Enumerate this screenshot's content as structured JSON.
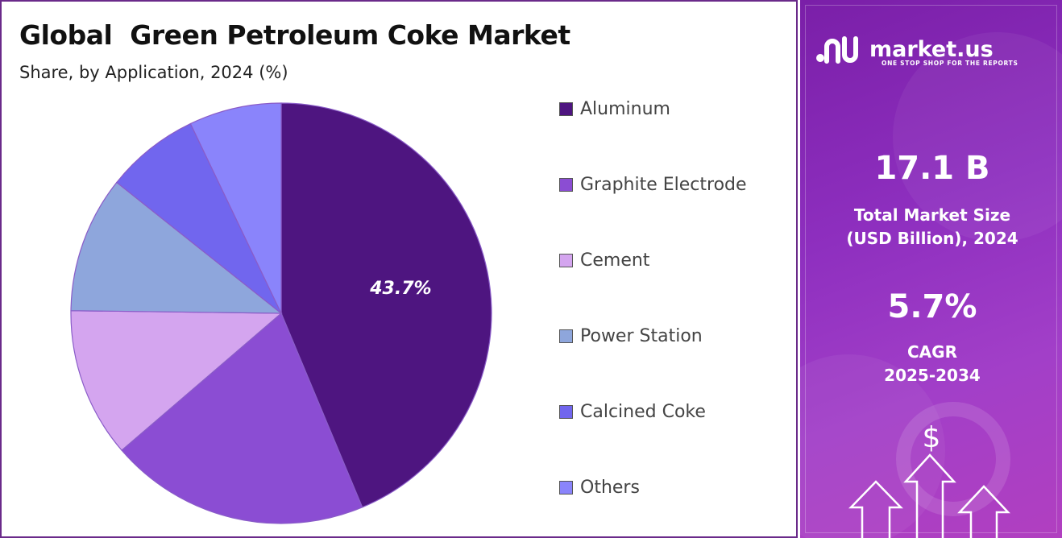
{
  "chart_data": {
    "type": "pie",
    "title": "Global  Green Petroleum Coke Market",
    "subtitle": "Share, by Application, 2024 (%)",
    "slices": [
      {
        "label": "Aluminum",
        "value": 43.7,
        "color": "#4e1580",
        "data_label": "43.7%"
      },
      {
        "label": "Graphite Electrode",
        "value": 20.0,
        "color": "#8b4dd3"
      },
      {
        "label": "Cement",
        "value": 11.5,
        "color": "#d4a5ef"
      },
      {
        "label": "Power Station",
        "value": 10.5,
        "color": "#8ea6dc"
      },
      {
        "label": "Calcined Coke",
        "value": 7.2,
        "color": "#7166ee"
      },
      {
        "label": "Others",
        "value": 7.1,
        "color": "#8a84fb"
      }
    ],
    "legend_position": "right",
    "start_angle_deg": 0,
    "direction": "clockwise"
  },
  "brand": {
    "name": "market.us",
    "tagline": "ONE STOP SHOP FOR THE REPORTS",
    "logo_icon": "market-us-logo-icon"
  },
  "stats": {
    "market_size_value": "17.1 B",
    "market_size_label_line1": "Total Market Size",
    "market_size_label_line2": "(USD Billion), 2024",
    "cagr_value": "5.7%",
    "cagr_label_line1": "CAGR",
    "cagr_label_line2": "2025-2034"
  },
  "decorations": {
    "dollar_symbol": "$",
    "growth_icon": "rising-arrows-icon"
  },
  "colors": {
    "panel_border": "#6a2a8a",
    "side_panel_start": "#7a1fa8",
    "side_panel_end": "#b13fc0"
  }
}
